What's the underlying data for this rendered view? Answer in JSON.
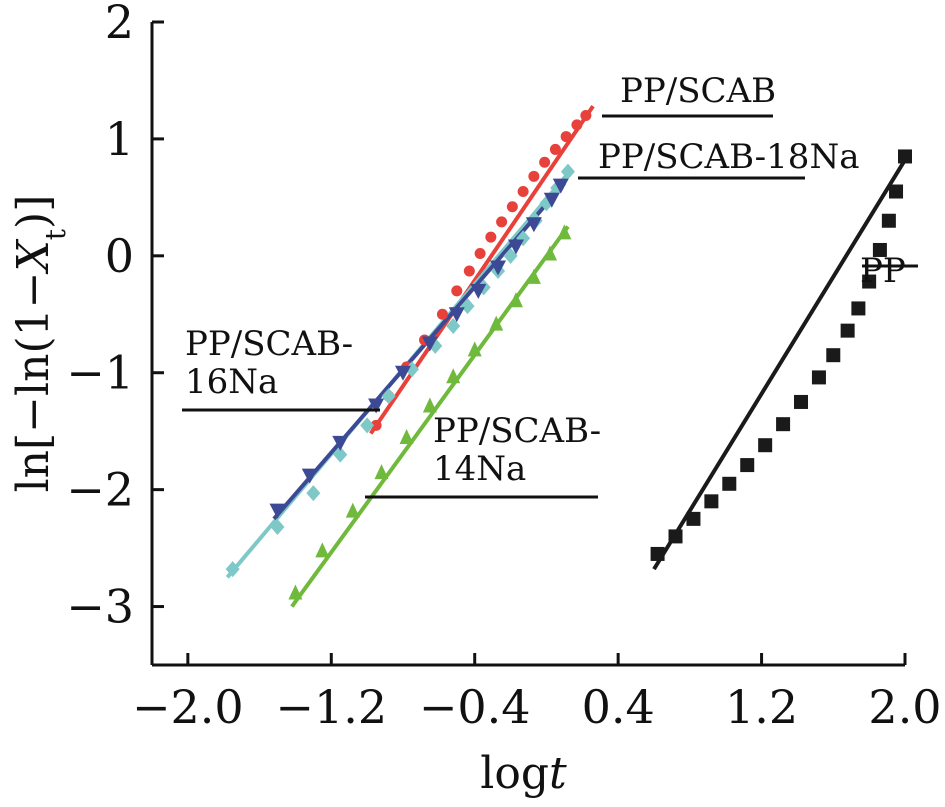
{
  "chart_data": {
    "type": "scatter",
    "title": "",
    "xlabel": "logt",
    "ylabel": "ln[-ln(1-X_t)]",
    "xlim": [
      -2.2,
      2.0
    ],
    "ylim": [
      -3.5,
      2.0
    ],
    "x_ticks": [
      -2.0,
      -1.2,
      -0.4,
      0.4,
      1.2,
      2.0
    ],
    "x_tick_labels": [
      "−2.0",
      "−1.2",
      "−0.4",
      "0.4",
      "1.2",
      "2.0"
    ],
    "y_ticks": [
      -3,
      -2,
      -1,
      0,
      1,
      2
    ],
    "y_tick_labels": [
      "−3",
      "−2",
      "−1",
      "0",
      "1",
      "2"
    ],
    "grid": false,
    "series": [
      {
        "name": "PP/SCAB",
        "label_lines": [
          "PP/SCAB"
        ],
        "color": "#e8403a",
        "marker": "circle",
        "points": [
          [
            -0.95,
            -1.45
          ],
          [
            -0.88,
            -1.2
          ],
          [
            -0.78,
            -0.95
          ],
          [
            -0.68,
            -0.72
          ],
          [
            -0.58,
            -0.5
          ],
          [
            -0.5,
            -0.3
          ],
          [
            -0.43,
            -0.13
          ],
          [
            -0.37,
            0.02
          ],
          [
            -0.31,
            0.16
          ],
          [
            -0.25,
            0.29
          ],
          [
            -0.19,
            0.42
          ],
          [
            -0.13,
            0.55
          ],
          [
            -0.07,
            0.68
          ],
          [
            -0.01,
            0.8
          ],
          [
            0.05,
            0.91
          ],
          [
            0.11,
            1.02
          ],
          [
            0.17,
            1.12
          ],
          [
            0.22,
            1.2
          ]
        ],
        "fit": [
          [
            -0.98,
            -1.52
          ],
          [
            0.26,
            1.28
          ]
        ]
      },
      {
        "name": "PP/SCAB-18Na",
        "label_lines": [
          "PP/SCAB-18Na"
        ],
        "color": "#7ec8c8",
        "marker": "diamond",
        "points": [
          [
            -1.75,
            -2.68
          ],
          [
            -1.5,
            -2.32
          ],
          [
            -1.3,
            -2.03
          ],
          [
            -1.15,
            -1.7
          ],
          [
            -1.0,
            -1.45
          ],
          [
            -0.88,
            -1.2
          ],
          [
            -0.75,
            -0.97
          ],
          [
            -0.62,
            -0.77
          ],
          [
            -0.52,
            -0.6
          ],
          [
            -0.44,
            -0.43
          ],
          [
            -0.35,
            -0.27
          ],
          [
            -0.27,
            -0.13
          ],
          [
            -0.2,
            0.0
          ],
          [
            -0.13,
            0.15
          ],
          [
            -0.06,
            0.3
          ],
          [
            0.0,
            0.45
          ],
          [
            0.06,
            0.58
          ],
          [
            0.12,
            0.72
          ]
        ],
        "fit": [
          [
            -1.78,
            -2.75
          ],
          [
            0.14,
            0.74
          ]
        ]
      },
      {
        "name": "PP",
        "label_lines": [
          "PP"
        ],
        "color": "#1a1a1a",
        "marker": "square",
        "points": [
          [
            0.62,
            -2.55
          ],
          [
            0.72,
            -2.4
          ],
          [
            0.82,
            -2.25
          ],
          [
            0.92,
            -2.1
          ],
          [
            1.02,
            -1.95
          ],
          [
            1.12,
            -1.79
          ],
          [
            1.22,
            -1.62
          ],
          [
            1.32,
            -1.44
          ],
          [
            1.42,
            -1.25
          ],
          [
            1.52,
            -1.04
          ],
          [
            1.6,
            -0.85
          ],
          [
            1.68,
            -0.64
          ],
          [
            1.74,
            -0.45
          ],
          [
            1.8,
            -0.22
          ],
          [
            1.86,
            0.05
          ],
          [
            1.91,
            0.3
          ],
          [
            1.95,
            0.55
          ],
          [
            2.0,
            0.85
          ]
        ],
        "fit": [
          [
            0.6,
            -2.68
          ],
          [
            2.0,
            0.82
          ]
        ]
      },
      {
        "name": "PP/SCAB-16Na",
        "label_lines": [
          "PP/SCAB-",
          "16Na"
        ],
        "color": "#3c4a96",
        "marker": "triangle-down",
        "points": [
          [
            -1.5,
            -2.18
          ],
          [
            -1.32,
            -1.88
          ],
          [
            -1.15,
            -1.6
          ],
          [
            -0.95,
            -1.28
          ],
          [
            -0.8,
            -1.0
          ],
          [
            -0.65,
            -0.75
          ],
          [
            -0.5,
            -0.5
          ],
          [
            -0.38,
            -0.3
          ],
          [
            -0.27,
            -0.1
          ],
          [
            -0.17,
            0.08
          ],
          [
            -0.07,
            0.27
          ],
          [
            0.03,
            0.48
          ],
          [
            0.08,
            0.6
          ]
        ],
        "fit": [
          [
            -1.52,
            -2.25
          ],
          [
            0.1,
            0.62
          ]
        ]
      },
      {
        "name": "PP/SCAB-14Na",
        "label_lines": [
          "PP/SCAB-",
          "14Na"
        ],
        "color": "#6fb93c",
        "marker": "triangle-up",
        "points": [
          [
            -1.4,
            -2.88
          ],
          [
            -1.25,
            -2.52
          ],
          [
            -1.08,
            -2.18
          ],
          [
            -0.92,
            -1.85
          ],
          [
            -0.78,
            -1.55
          ],
          [
            -0.65,
            -1.28
          ],
          [
            -0.52,
            -1.03
          ],
          [
            -0.4,
            -0.8
          ],
          [
            -0.28,
            -0.58
          ],
          [
            -0.17,
            -0.38
          ],
          [
            -0.07,
            -0.18
          ],
          [
            0.02,
            0.02
          ],
          [
            0.1,
            0.2
          ]
        ],
        "fit": [
          [
            -1.42,
            -3.0
          ],
          [
            0.12,
            0.25
          ]
        ]
      }
    ]
  }
}
